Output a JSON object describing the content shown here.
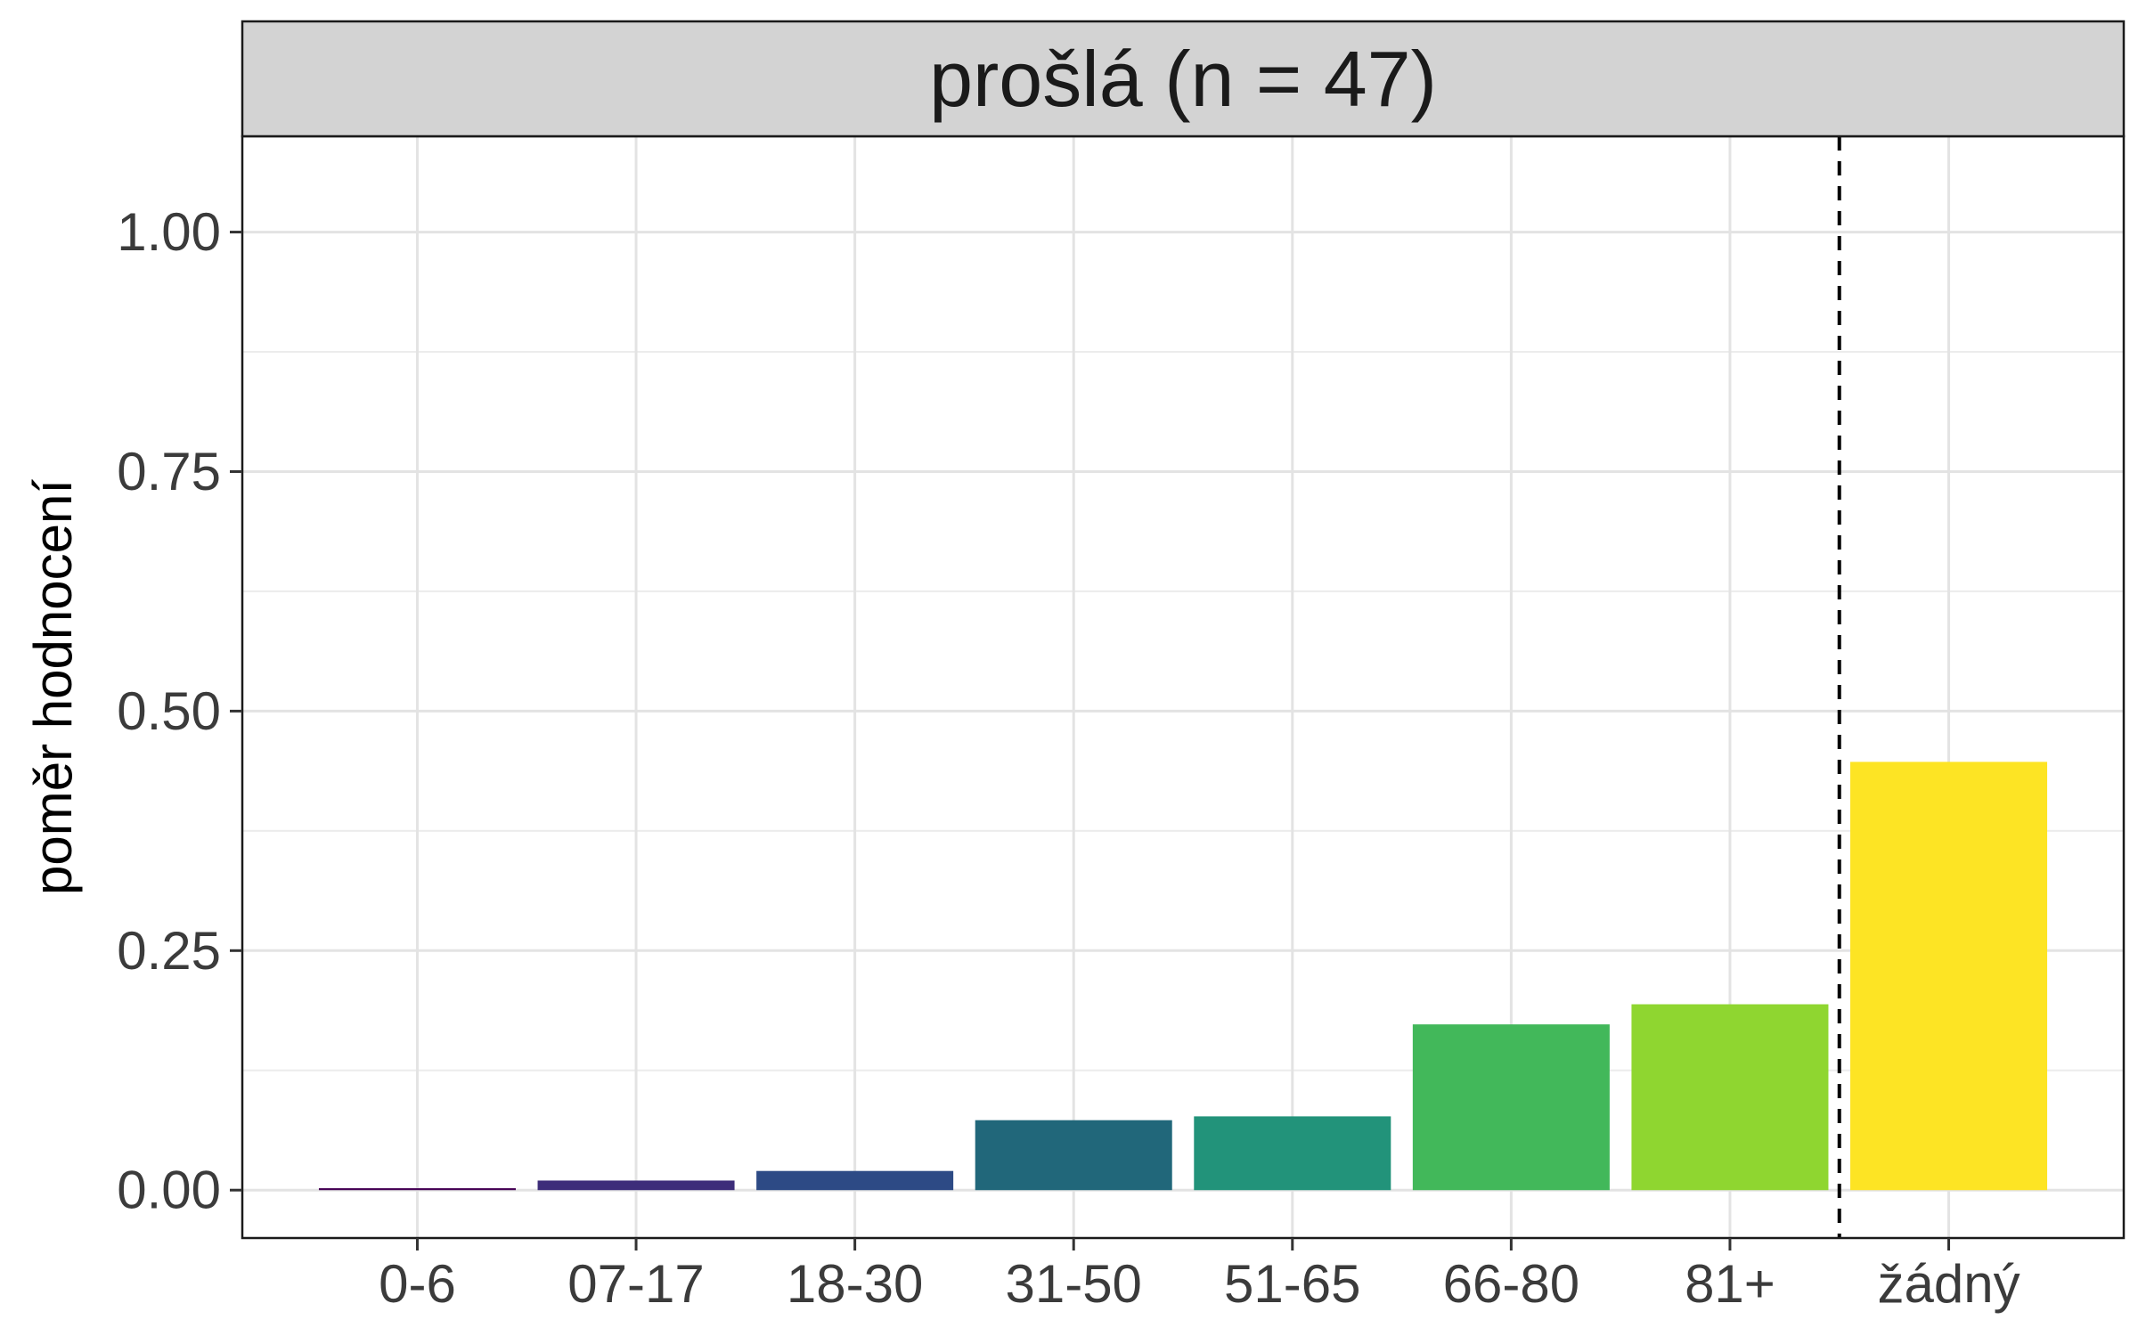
{
  "chart_data": {
    "type": "bar",
    "facet_title": "prošlá (n = 47)",
    "ylabel": "poměr hodnocení",
    "xlabel": "",
    "categories": [
      "0-6",
      "07-17",
      "18-30",
      "31-50",
      "51-65",
      "66-80",
      "81+",
      "žádný"
    ],
    "values": [
      0.002,
      0.01,
      0.02,
      0.073,
      0.077,
      0.173,
      0.194,
      0.447
    ],
    "colors": [
      "#440154",
      "#3d2d7a",
      "#2d4a85",
      "#21677a",
      "#22937a",
      "#42b85a",
      "#8fd630",
      "#fde424"
    ],
    "ylim": [
      -0.05,
      1.1
    ],
    "yticks": [
      0.0,
      0.25,
      0.5,
      0.75,
      1.0
    ],
    "ytick_labels": [
      "0.00",
      "0.25",
      "0.50",
      "0.75",
      "1.00"
    ],
    "reference_line": {
      "between_categories": [
        "81+",
        "žádný"
      ],
      "style": "dashed"
    },
    "grid": true,
    "legend": "none"
  }
}
